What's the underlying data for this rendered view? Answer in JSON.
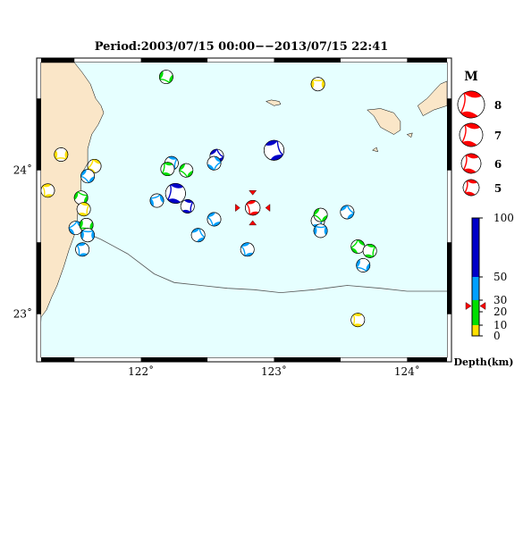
{
  "title": "Period:2003/07/15 00:00−−2013/07/15 22:41",
  "chart_data": {
    "type": "map",
    "lon_range": [
      121.25,
      124.3
    ],
    "lat_range": [
      22.7,
      24.75
    ],
    "lon_ticks": [
      {
        "value": 122,
        "label": "122˚"
      },
      {
        "value": 123,
        "label": "123˚"
      },
      {
        "value": 124,
        "label": "124˚"
      }
    ],
    "lat_ticks": [
      {
        "value": 23,
        "label": "23˚"
      },
      {
        "value": 24,
        "label": "24˚"
      }
    ],
    "colors": {
      "sea": "#e6ffff",
      "land": "#fae6c8",
      "compression": "#ff0000",
      "tension": "#ffffff",
      "depth_0_10": "#ffe000",
      "depth_10_30": "#00e000",
      "depth_30_50": "#00a0ff",
      "depth_50_100": "#0000c8",
      "trench": "#555555"
    },
    "events": [
      {
        "lon": 122.19,
        "lat": 24.65,
        "depth": 12,
        "mag": 5,
        "rot": 40
      },
      {
        "lon": 123.33,
        "lat": 24.6,
        "depth": 5,
        "mag": 5,
        "rot": 200
      },
      {
        "lon": 122.23,
        "lat": 24.05,
        "depth": 40,
        "mag": 5,
        "rot": 300
      },
      {
        "lon": 122.2,
        "lat": 24.01,
        "depth": 15,
        "mag": 5,
        "rot": 120
      },
      {
        "lon": 122.34,
        "lat": 24.0,
        "depth": 15,
        "mag": 5,
        "rot": 60
      },
      {
        "lon": 122.57,
        "lat": 24.1,
        "depth": 70,
        "mag": 5,
        "rot": 250
      },
      {
        "lon": 122.55,
        "lat": 24.05,
        "depth": 40,
        "mag": 5,
        "rot": 330
      },
      {
        "lon": 123.0,
        "lat": 24.14,
        "depth": 75,
        "mag": 6,
        "rot": 270
      },
      {
        "lon": 121.4,
        "lat": 24.11,
        "depth": 5,
        "mag": 5,
        "rot": 20
      },
      {
        "lon": 121.65,
        "lat": 24.03,
        "depth": 5,
        "mag": 5,
        "rot": 140
      },
      {
        "lon": 121.6,
        "lat": 23.96,
        "depth": 40,
        "mag": 5,
        "rot": 60
      },
      {
        "lon": 121.3,
        "lat": 23.86,
        "depth": 5,
        "mag": 5,
        "rot": 100
      },
      {
        "lon": 121.55,
        "lat": 23.81,
        "depth": 15,
        "mag": 5,
        "rot": 220
      },
      {
        "lon": 121.57,
        "lat": 23.73,
        "depth": 5,
        "mag": 5,
        "rot": 300
      },
      {
        "lon": 122.12,
        "lat": 23.79,
        "depth": 40,
        "mag": 5,
        "rot": 180
      },
      {
        "lon": 122.26,
        "lat": 23.84,
        "depth": 70,
        "mag": 6,
        "rot": 120
      },
      {
        "lon": 122.35,
        "lat": 23.75,
        "depth": 70,
        "mag": 5,
        "rot": 300
      },
      {
        "lon": 122.55,
        "lat": 23.66,
        "depth": 40,
        "mag": 5,
        "rot": 80
      },
      {
        "lon": 122.43,
        "lat": 23.55,
        "depth": 40,
        "mag": 5,
        "rot": 260
      },
      {
        "lon": 121.51,
        "lat": 23.6,
        "depth": 40,
        "mag": 5,
        "rot": 160
      },
      {
        "lon": 121.59,
        "lat": 23.62,
        "depth": 15,
        "mag": 5,
        "rot": 30
      },
      {
        "lon": 121.6,
        "lat": 23.55,
        "depth": 40,
        "mag": 5,
        "rot": 200
      },
      {
        "lon": 121.56,
        "lat": 23.45,
        "depth": 40,
        "mag": 5,
        "rot": 100
      },
      {
        "lon": 122.8,
        "lat": 23.45,
        "depth": 40,
        "mag": 5,
        "rot": 90
      },
      {
        "lon": 123.33,
        "lat": 23.65,
        "depth": 40,
        "mag": 5,
        "rot": 300
      },
      {
        "lon": 123.35,
        "lat": 23.69,
        "depth": 15,
        "mag": 5,
        "rot": 60
      },
      {
        "lon": 123.35,
        "lat": 23.58,
        "depth": 40,
        "mag": 5,
        "rot": 200
      },
      {
        "lon": 123.55,
        "lat": 23.71,
        "depth": 40,
        "mag": 5,
        "rot": 250
      },
      {
        "lon": 123.63,
        "lat": 23.47,
        "depth": 15,
        "mag": 5,
        "rot": 150
      },
      {
        "lon": 123.72,
        "lat": 23.44,
        "depth": 15,
        "mag": 5,
        "rot": 300
      },
      {
        "lon": 123.67,
        "lat": 23.34,
        "depth": 40,
        "mag": 5,
        "rot": 40
      },
      {
        "lon": 123.63,
        "lat": 22.96,
        "depth": 5,
        "mag": 5,
        "rot": 110
      }
    ],
    "latest_event": {
      "lon": 122.84,
      "lat": 23.74,
      "depth": 25,
      "mag": 5.2,
      "rot": 95
    },
    "land": [
      {
        "name": "taiwan",
        "points": [
          [
            121.25,
            24.75
          ],
          [
            121.5,
            24.75
          ],
          [
            121.56,
            24.68
          ],
          [
            121.62,
            24.6
          ],
          [
            121.66,
            24.5
          ],
          [
            121.7,
            24.45
          ],
          [
            121.72,
            24.4
          ],
          [
            121.68,
            24.32
          ],
          [
            121.63,
            24.25
          ],
          [
            121.6,
            24.15
          ],
          [
            121.6,
            24.05
          ],
          [
            121.55,
            23.97
          ],
          [
            121.55,
            23.85
          ],
          [
            121.53,
            23.75
          ],
          [
            121.52,
            23.65
          ],
          [
            121.5,
            23.55
          ],
          [
            121.46,
            23.45
          ],
          [
            121.42,
            23.33
          ],
          [
            121.37,
            23.2
          ],
          [
            121.33,
            23.12
          ],
          [
            121.29,
            23.03
          ],
          [
            121.25,
            22.98
          ]
        ]
      },
      {
        "name": "yonaguni",
        "points": [
          [
            122.94,
            24.48
          ],
          [
            123.0,
            24.45
          ],
          [
            123.05,
            24.46
          ],
          [
            123.04,
            24.48
          ],
          [
            122.98,
            24.49
          ]
        ]
      },
      {
        "name": "iriomote",
        "points": [
          [
            123.7,
            24.42
          ],
          [
            123.75,
            24.38
          ],
          [
            123.8,
            24.3
          ],
          [
            123.9,
            24.25
          ],
          [
            123.95,
            24.28
          ],
          [
            123.95,
            24.34
          ],
          [
            123.9,
            24.4
          ],
          [
            123.8,
            24.43
          ]
        ]
      },
      {
        "name": "ishigaki-n",
        "points": [
          [
            124.08,
            24.45
          ],
          [
            124.15,
            24.5
          ],
          [
            124.2,
            24.55
          ],
          [
            124.25,
            24.6
          ],
          [
            124.3,
            24.62
          ],
          [
            124.3,
            24.45
          ],
          [
            124.2,
            24.42
          ],
          [
            124.12,
            24.38
          ]
        ]
      },
      {
        "name": "hateruma-islet",
        "points": [
          [
            123.74,
            24.14
          ],
          [
            123.78,
            24.13
          ],
          [
            123.77,
            24.16
          ]
        ]
      },
      {
        "name": "aragusuku",
        "points": [
          [
            124.0,
            24.25
          ],
          [
            124.03,
            24.23
          ],
          [
            124.04,
            24.26
          ]
        ]
      }
    ],
    "trench": [
      [
        121.5,
        23.6
      ],
      [
        121.7,
        23.52
      ],
      [
        121.9,
        23.42
      ],
      [
        122.1,
        23.28
      ],
      [
        122.25,
        23.22
      ],
      [
        122.45,
        23.2
      ],
      [
        122.65,
        23.18
      ],
      [
        122.85,
        23.17
      ],
      [
        123.05,
        23.15
      ],
      [
        123.3,
        23.17
      ],
      [
        123.55,
        23.2
      ],
      [
        123.8,
        23.18
      ],
      [
        124.0,
        23.16
      ],
      [
        124.3,
        23.16
      ]
    ]
  },
  "legend": {
    "magnitude_title": "M",
    "magnitudes": [
      {
        "label": "8",
        "value": 8
      },
      {
        "label": "7",
        "value": 7
      },
      {
        "label": "6",
        "value": 6
      },
      {
        "label": "5",
        "value": 5
      }
    ],
    "depth_ticks": [
      {
        "value": 100,
        "label": "100"
      },
      {
        "value": 50,
        "label": "50"
      },
      {
        "value": 30,
        "label": "30"
      },
      {
        "value": 20,
        "label": "20"
      },
      {
        "value": 10,
        "label": "10"
      },
      {
        "value": 0,
        "label": "0"
      }
    ],
    "depth_title": "Depth(km)",
    "depth_marker_value": 25
  }
}
